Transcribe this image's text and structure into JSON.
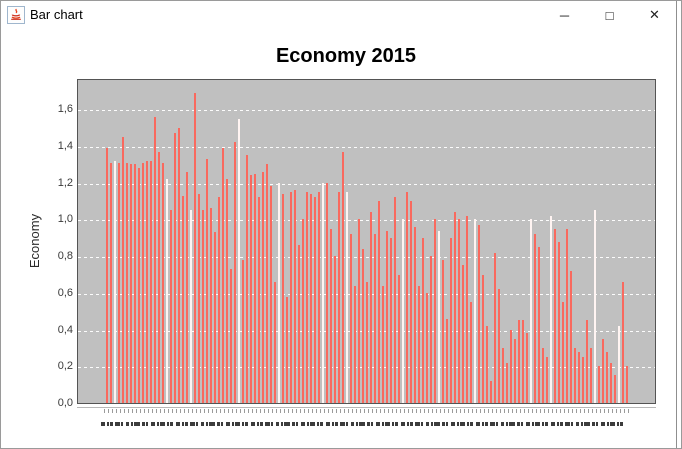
{
  "window": {
    "title": "Bar chart",
    "controls": {
      "minimize": "─",
      "maximize": "□",
      "close": "✕"
    },
    "icon": "java-coffee-cup"
  },
  "chart_data": {
    "type": "bar",
    "title": "Economy 2015",
    "xlabel": "",
    "ylabel": "Economy",
    "ylim": [
      0,
      1.7
    ],
    "grid": true,
    "legend_visible": false,
    "xtick_labels_legible": false,
    "yticks": [
      "0,0",
      "0,2",
      "0,4",
      "0,6",
      "0,8",
      "1,0",
      "1,2",
      "1,4",
      "1,6"
    ],
    "ytick_values": [
      0,
      0.2,
      0.4,
      0.6,
      0.8,
      1.0,
      1.2,
      1.4,
      1.6
    ],
    "colors": {
      "bar": "#f9695e",
      "bar_pale": "#fff4f2",
      "plot_background": "#c0c0c0",
      "gridline": "#ffffff",
      "plot_border": "#545454",
      "title_text": "#000000",
      "axis_text": "#3a3a3a"
    },
    "values": [
      1.39,
      1.31,
      1.32,
      1.31,
      1.45,
      1.31,
      1.3,
      1.3,
      1.28,
      1.31,
      1.32,
      1.32,
      1.56,
      1.37,
      1.31,
      1.22,
      1.05,
      1.47,
      1.5,
      1.13,
      1.26,
      1.05,
      1.69,
      1.14,
      1.05,
      1.33,
      1.06,
      0.93,
      1.12,
      1.39,
      1.22,
      0.73,
      1.42,
      1.55,
      0.78,
      1.35,
      1.24,
      1.25,
      1.12,
      1.26,
      1.3,
      1.18,
      0.66,
      1.2,
      1.14,
      0.58,
      1.15,
      1.16,
      0.86,
      1.0,
      1.15,
      1.14,
      1.12,
      1.15,
      1.2,
      1.2,
      0.95,
      0.8,
      1.15,
      1.37,
      1.15,
      0.92,
      0.64,
      1.0,
      0.84,
      0.66,
      1.04,
      0.92,
      1.1,
      0.64,
      0.94,
      0.9,
      1.12,
      0.7,
      1.0,
      1.15,
      1.1,
      0.96,
      0.64,
      0.9,
      0.6,
      0.8,
      1.0,
      0.94,
      0.78,
      0.46,
      0.9,
      1.04,
      1.0,
      0.75,
      1.02,
      0.55,
      1.0,
      0.97,
      0.7,
      0.42,
      0.12,
      0.82,
      0.62,
      0.3,
      0.22,
      0.4,
      0.35,
      0.45,
      0.45,
      0.38,
      1.0,
      0.92,
      0.85,
      0.3,
      0.25,
      1.02,
      0.95,
      0.88,
      0.55,
      0.95,
      0.72,
      0.3,
      0.28,
      0.25,
      0.45,
      0.3,
      1.05,
      0.2,
      0.35,
      0.28,
      0.22,
      0.15,
      0.42,
      0.66,
      0.2
    ],
    "pale_indices": [
      2,
      15,
      21,
      33,
      43,
      54,
      60,
      74,
      83,
      92,
      106,
      111,
      122,
      128
    ]
  }
}
